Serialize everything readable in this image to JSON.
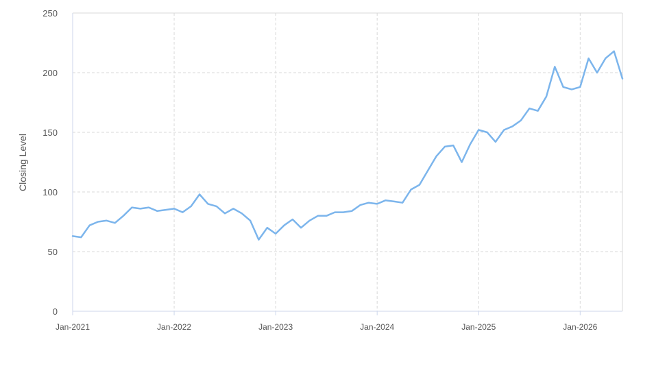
{
  "chart_data": {
    "type": "line",
    "title": "",
    "xlabel": "",
    "ylabel": "Closing Level",
    "xlim": [
      "2021-01",
      "2026-06"
    ],
    "ylim": [
      0,
      250
    ],
    "y_ticks": [
      0,
      50,
      100,
      150,
      200,
      250
    ],
    "x_ticks": [
      "Jan-2021",
      "Jan-2022",
      "Jan-2023",
      "Jan-2024",
      "Jan-2025",
      "Jan-2026"
    ],
    "grid": true,
    "legend": "none",
    "colors": {
      "line": "#7cb5ec",
      "grid": "#d8d8d8",
      "axis": "#ccd6eb"
    },
    "series": [
      {
        "x": [
          "2021-01",
          "2021-02",
          "2021-03",
          "2021-04",
          "2021-05",
          "2021-06",
          "2021-07",
          "2021-08",
          "2021-09",
          "2021-10",
          "2021-11",
          "2021-12",
          "2022-01",
          "2022-02",
          "2022-03",
          "2022-04",
          "2022-05",
          "2022-06",
          "2022-07",
          "2022-08",
          "2022-09",
          "2022-10",
          "2022-11",
          "2022-12",
          "2023-01",
          "2023-02",
          "2023-03",
          "2023-04",
          "2023-05",
          "2023-06",
          "2023-07",
          "2023-08",
          "2023-09",
          "2023-10",
          "2023-11",
          "2023-12",
          "2024-01",
          "2024-02",
          "2024-03",
          "2024-04",
          "2024-05",
          "2024-06",
          "2024-07",
          "2024-08",
          "2024-09",
          "2024-10",
          "2024-11",
          "2024-12",
          "2025-01",
          "2025-02",
          "2025-03",
          "2025-04",
          "2025-05",
          "2025-06",
          "2025-07",
          "2025-08",
          "2025-09",
          "2025-10",
          "2025-11",
          "2025-12",
          "2026-01",
          "2026-02",
          "2026-03",
          "2026-04",
          "2026-05",
          "2026-06"
        ],
        "y": [
          63,
          62,
          72,
          75,
          76,
          74,
          80,
          87,
          86,
          87,
          84,
          85,
          86,
          83,
          88,
          98,
          90,
          88,
          82,
          86,
          82,
          76,
          60,
          70,
          65,
          72,
          77,
          70,
          76,
          80,
          80,
          83,
          83,
          84,
          89,
          91,
          90,
          93,
          92,
          91,
          102,
          106,
          118,
          130,
          138,
          139,
          125,
          140,
          152,
          150,
          142,
          152,
          155,
          160,
          170,
          168,
          180,
          205,
          188,
          186,
          188,
          212,
          200,
          212,
          218,
          195
        ]
      }
    ]
  }
}
